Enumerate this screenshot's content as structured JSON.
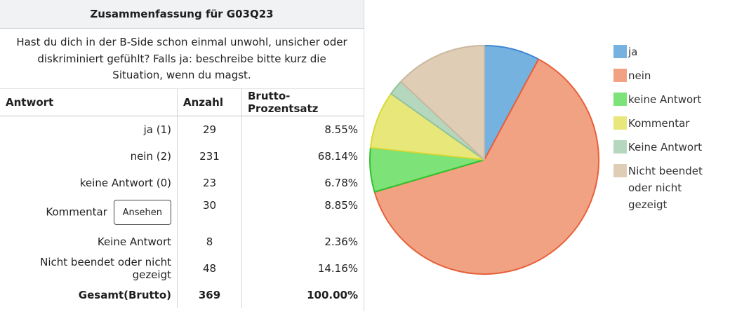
{
  "summary": {
    "title": "Zusammenfassung für G03Q23",
    "question": "Hast du dich in der B-Side schon einmal unwohl, unsicher oder diskriminiert gefühlt? Falls ja: beschreibe bitte kurz die Situation, wenn du magst."
  },
  "table": {
    "headers": {
      "answer": "Antwort",
      "count": "Anzahl",
      "percent": "Brutto-Prozentsatz"
    },
    "rows": [
      {
        "answer": "ja (1)",
        "count": "29",
        "percent": "8.55%"
      },
      {
        "answer": "nein (2)",
        "count": "231",
        "percent": "68.14%"
      },
      {
        "answer": "keine Antwort (0)",
        "count": "23",
        "percent": "6.78%"
      },
      {
        "answer": "Kommentar",
        "count": "30",
        "percent": "8.85%",
        "button": "Ansehen"
      },
      {
        "answer": "Keine Antwort",
        "count": "8",
        "percent": "2.36%"
      },
      {
        "answer": "Nicht beendet oder nicht gezeigt",
        "count": "48",
        "percent": "14.16%"
      }
    ],
    "total": {
      "answer": "Gesamt(Brutto)",
      "count": "369",
      "percent": "100.00%"
    }
  },
  "chart_data": {
    "type": "pie",
    "categories": [
      "ja",
      "nein",
      "keine Antwort",
      "Kommentar",
      "Keine Antwort",
      "Nicht beendet oder nicht gezeigt"
    ],
    "values": [
      29,
      231,
      23,
      30,
      8,
      48
    ],
    "colors": [
      "#75b2e0",
      "#f0a283",
      "#7de278",
      "#e8e77a",
      "#b5d7bd",
      "#e0cdb5"
    ],
    "stroke_colors": [
      "#3f87d4",
      "#e8603a",
      "#2fc12b",
      "#d9d837",
      "#8fc39b",
      "#c9b89f"
    ],
    "legend_placement": "right"
  }
}
